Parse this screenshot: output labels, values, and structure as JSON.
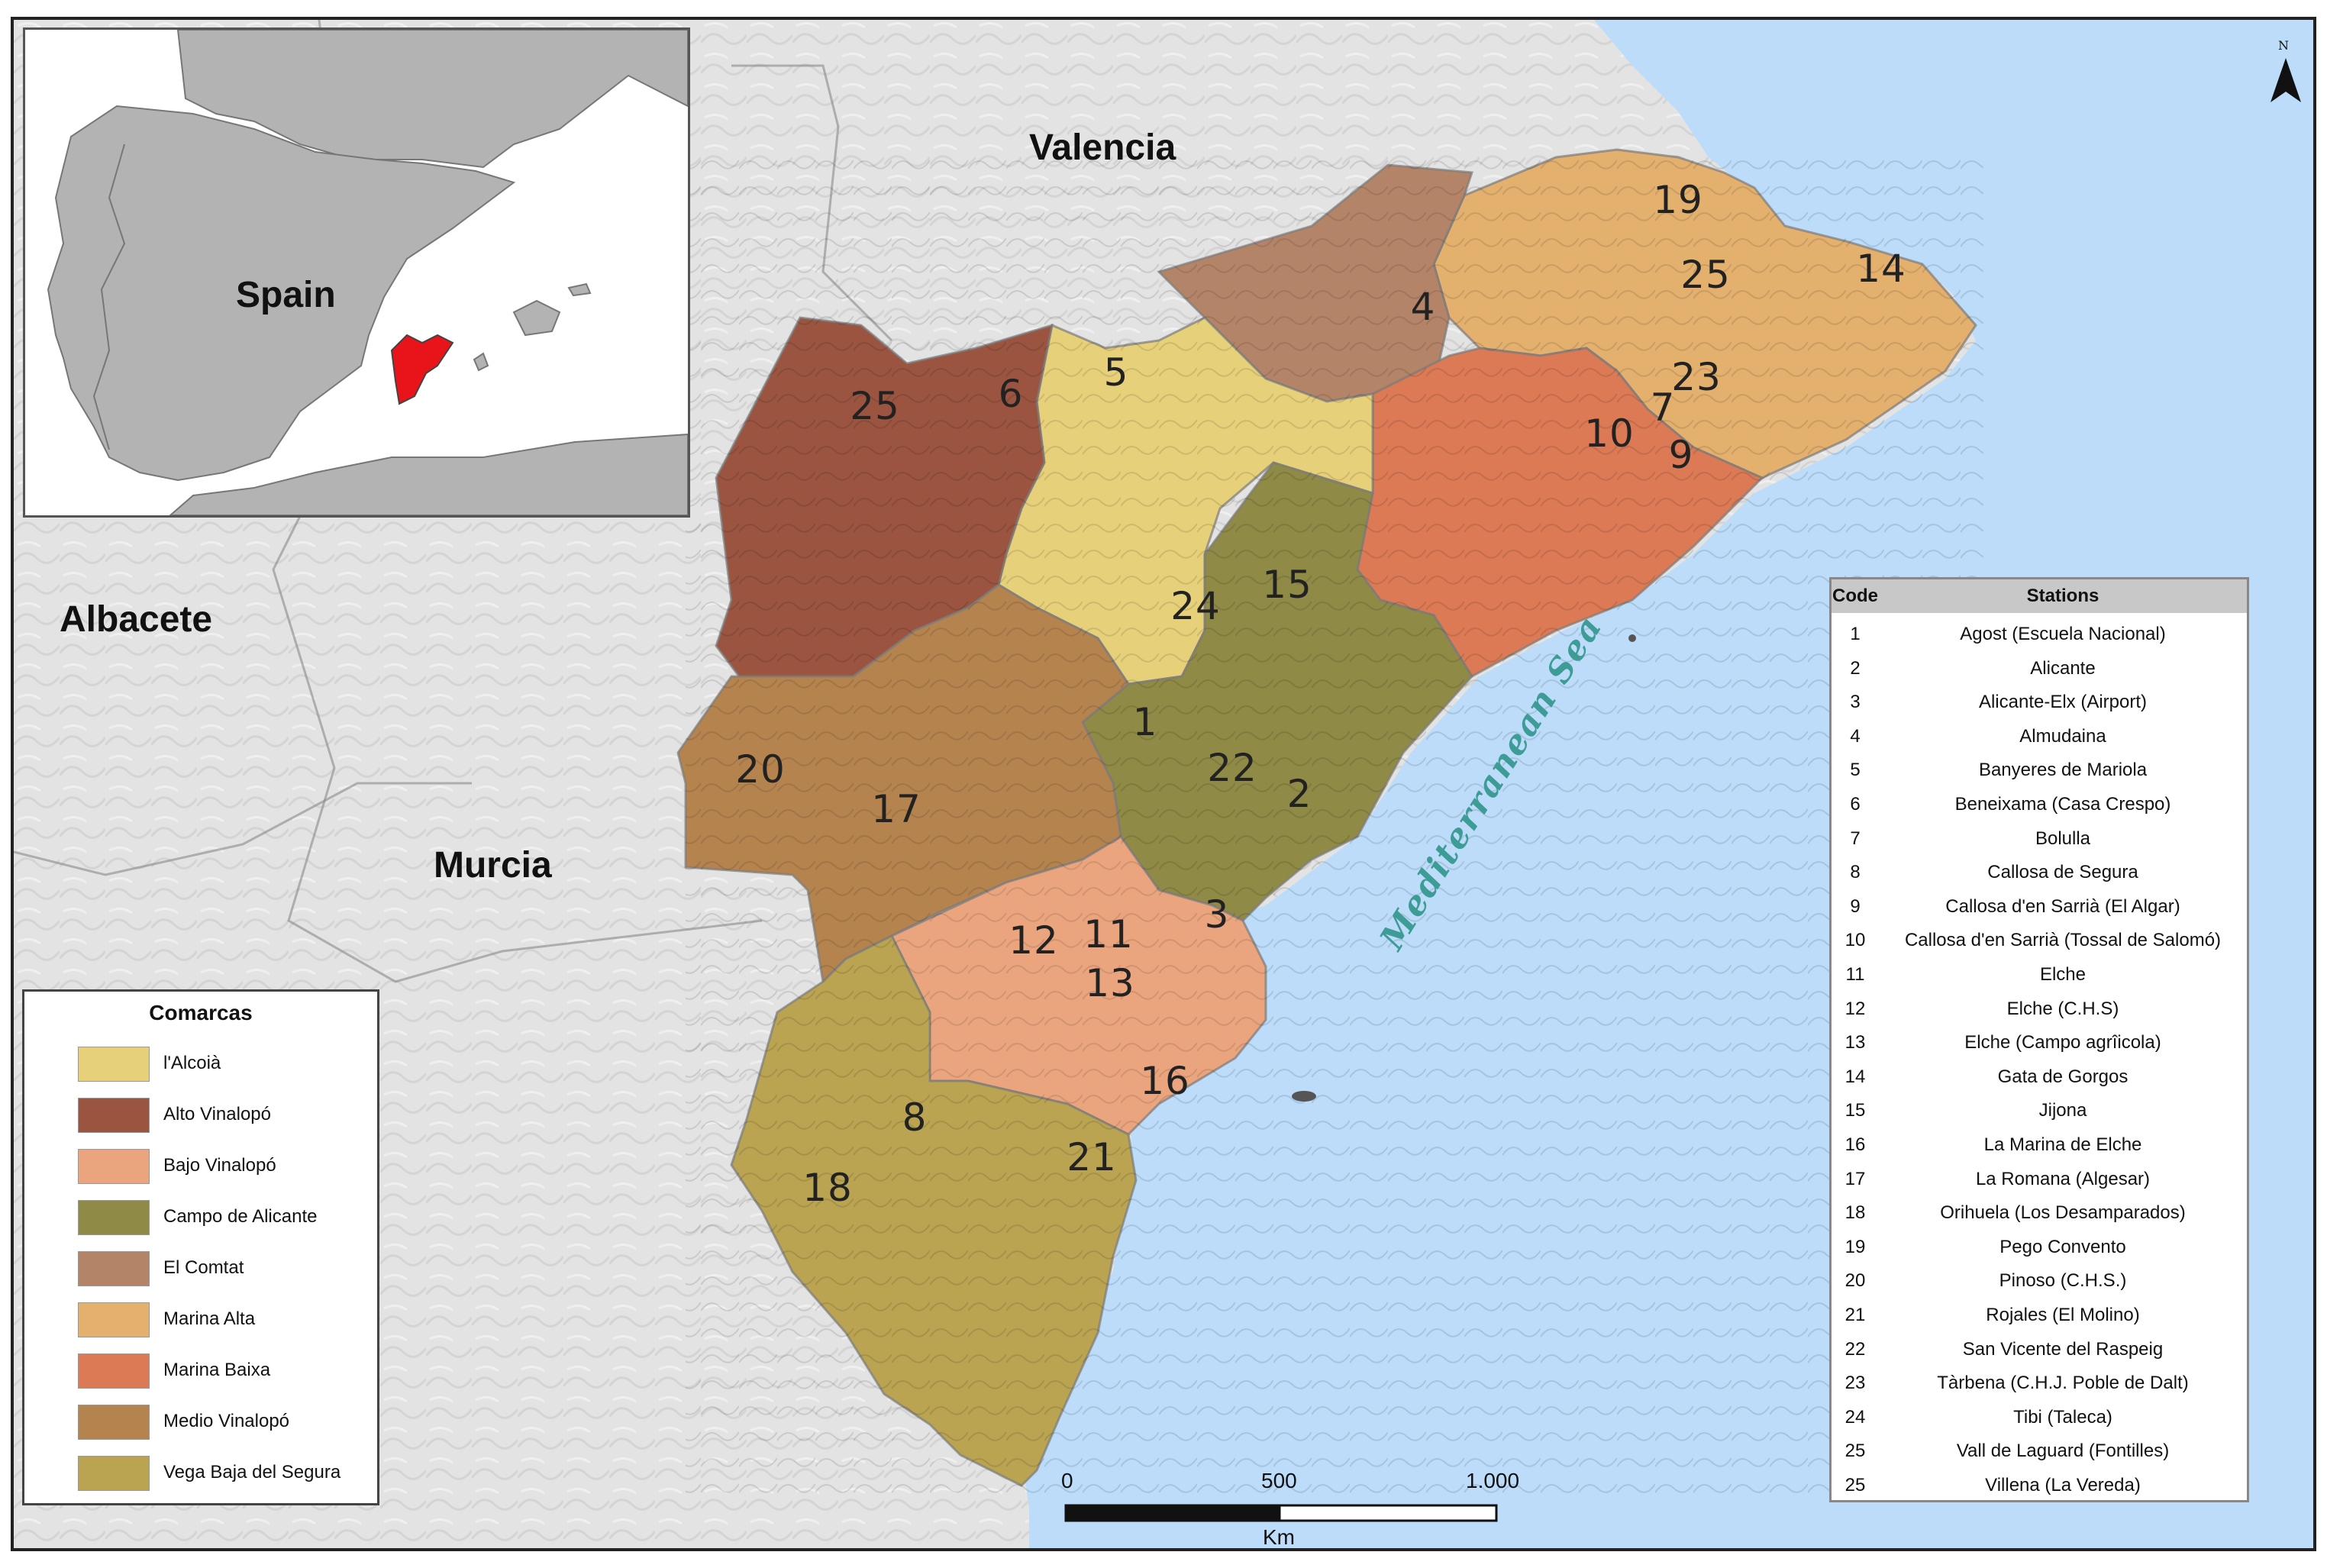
{
  "colors": {
    "sea": "#bcdcfa",
    "land": "#e3e3e3",
    "alcoia": "#e7d07a",
    "alto_vinalopo": "#9a5440",
    "bajo_vinalopo": "#eba57e",
    "campo_alicante": "#8f8a45",
    "el_comtat": "#b48468",
    "marina_alta": "#e3b06e",
    "marina_baixa": "#db7a55",
    "medio_vinalopo": "#b5834e",
    "vega_baja": "#baa452",
    "sea_label": "#3e9c96",
    "highlight_red": "#e8141a"
  },
  "labels": {
    "valencia": "Valencia",
    "albacete": "Albacete",
    "murcia": "Murcia",
    "sea": "Mediterranean Sea",
    "spain": "Spain",
    "north": "N"
  },
  "codes_on_map": [
    "19",
    "25",
    "14",
    "4",
    "23",
    "7",
    "10",
    "9",
    "5",
    "25",
    "6",
    "15",
    "24",
    "1",
    "22",
    "2",
    "20",
    "17",
    "12",
    "11",
    "13",
    "3",
    "16",
    "8",
    "21",
    "18"
  ],
  "legend": {
    "title": "Comarcas",
    "items": [
      {
        "label": "l'Alcoià",
        "color": "#e7d07a"
      },
      {
        "label": "Alto Vinalopó",
        "color": "#9a5440"
      },
      {
        "label": "Bajo Vinalopó",
        "color": "#eba57e"
      },
      {
        "label": "Campo de Alicante",
        "color": "#8f8a45"
      },
      {
        "label": "El Comtat",
        "color": "#b48468"
      },
      {
        "label": "Marina Alta",
        "color": "#e3b06e"
      },
      {
        "label": "Marina Baixa",
        "color": "#db7a55"
      },
      {
        "label": "Medio Vinalopó",
        "color": "#b5834e"
      },
      {
        "label": "Vega Baja del Segura",
        "color": "#baa452"
      }
    ]
  },
  "scale": {
    "tick0": "0",
    "tick1": "500",
    "tick2": "1.000",
    "unit": "Km"
  },
  "stations_table": {
    "header_code": "Code",
    "header_stations": "Stations",
    "rows": [
      {
        "code": "1",
        "name": "Agost (Escuela Nacional)"
      },
      {
        "code": "2",
        "name": "Alicante"
      },
      {
        "code": "3",
        "name": "Alicante-Elx (Airport)"
      },
      {
        "code": "4",
        "name": "Almudaina"
      },
      {
        "code": "5",
        "name": "Banyeres de Mariola"
      },
      {
        "code": "6",
        "name": "Beneixama (Casa Crespo)"
      },
      {
        "code": "7",
        "name": "Bolulla"
      },
      {
        "code": "8",
        "name": "Callosa de Segura"
      },
      {
        "code": "9",
        "name": "Callosa d'en Sarrià (El Algar)"
      },
      {
        "code": "10",
        "name": "Callosa d'en Sarrià (Tossal de Salomó)"
      },
      {
        "code": "11",
        "name": "Elche"
      },
      {
        "code": "12",
        "name": "Elche (C.H.S)"
      },
      {
        "code": "13",
        "name": "Elche (Campo agrîicola)"
      },
      {
        "code": "14",
        "name": "Gata de Gorgos"
      },
      {
        "code": "15",
        "name": "Jijona"
      },
      {
        "code": "16",
        "name": "La Marina de Elche"
      },
      {
        "code": "17",
        "name": "La Romana (Algesar)"
      },
      {
        "code": "18",
        "name": "Orihuela (Los Desamparados)"
      },
      {
        "code": "19",
        "name": "Pego Convento"
      },
      {
        "code": "20",
        "name": "Pinoso (C.H.S.)"
      },
      {
        "code": "21",
        "name": "Rojales (El Molino)"
      },
      {
        "code": "22",
        "name": "San Vicente del Raspeig"
      },
      {
        "code": "23",
        "name": "Tàrbena (C.H.J. Poble de Dalt)"
      },
      {
        "code": "24",
        "name": "Tibi (Taleca)"
      },
      {
        "code": "25",
        "name": "Vall de Laguard (Fontilles)"
      },
      {
        "code": "25",
        "name": "Villena (La Vereda)"
      }
    ]
  }
}
